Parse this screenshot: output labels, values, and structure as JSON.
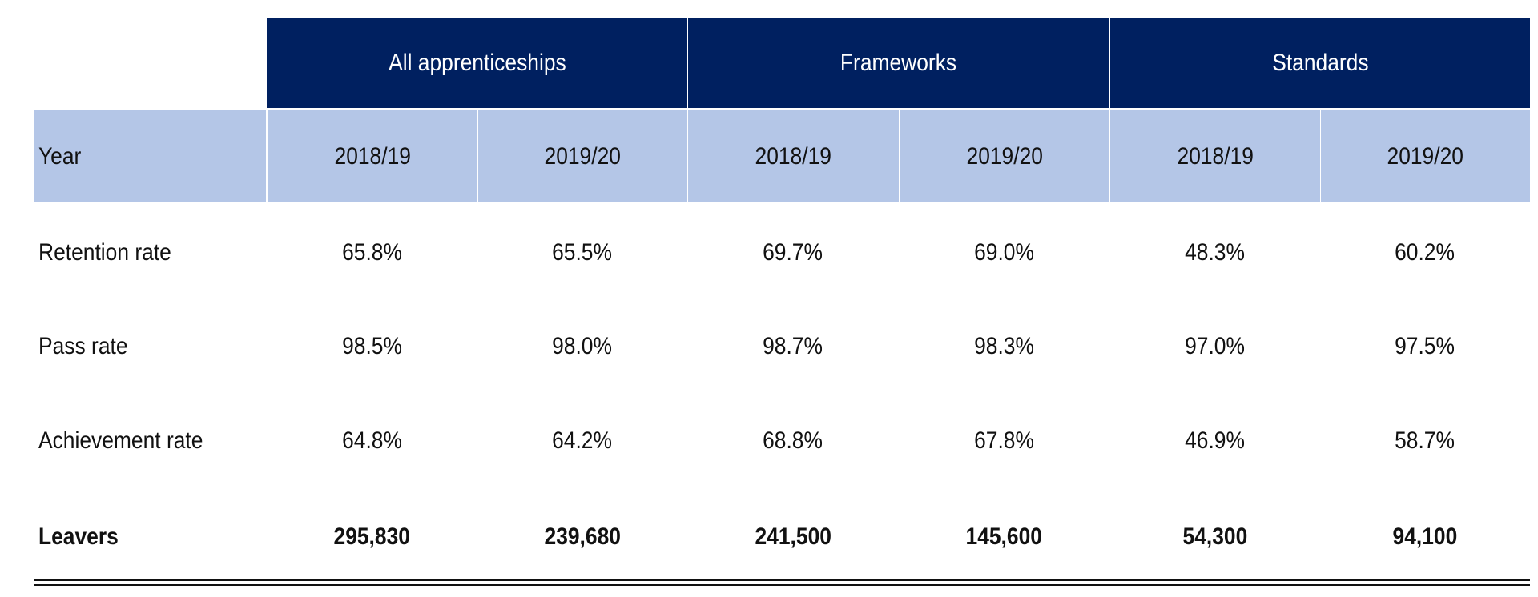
{
  "colors": {
    "group_header_bg": "#002060",
    "year_header_bg": "#B4C6E7"
  },
  "groups": [
    "All apprenticeships",
    "Frameworks",
    "Standards"
  ],
  "year_label": "Year",
  "years": [
    "2018/19",
    "2019/20",
    "2018/19",
    "2019/20",
    "2018/19",
    "2019/20"
  ],
  "rows": [
    {
      "label": "Retention rate",
      "values": [
        "65.8%",
        "65.5%",
        "69.7%",
        "69.0%",
        "48.3%",
        "60.2%"
      ]
    },
    {
      "label": "Pass rate",
      "values": [
        "98.5%",
        "98.0%",
        "98.7%",
        "98.3%",
        "97.0%",
        "97.5%"
      ]
    },
    {
      "label": "Achievement rate",
      "values": [
        "64.8%",
        "64.2%",
        "68.8%",
        "67.8%",
        "46.9%",
        "58.7%"
      ]
    },
    {
      "label": "Leavers",
      "values": [
        "295,830",
        "239,680",
        "241,500",
        "145,600",
        "54,300",
        "94,100"
      ]
    }
  ]
}
